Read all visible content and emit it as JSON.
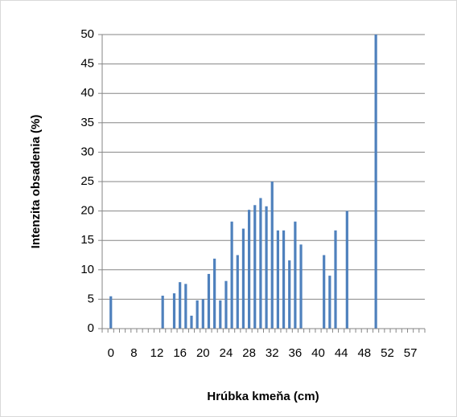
{
  "chart_data": {
    "type": "bar",
    "x_label": "Hrúbka kmeňa (cm)",
    "y_label": "Intenzita obsadenia (%)",
    "categories": [
      null,
      "0",
      null,
      null,
      null,
      "8",
      null,
      null,
      null,
      "12",
      null,
      null,
      null,
      "16",
      null,
      null,
      null,
      "20",
      null,
      null,
      null,
      "24",
      null,
      null,
      null,
      "28",
      null,
      null,
      null,
      "32",
      null,
      null,
      null,
      "36",
      null,
      null,
      null,
      "40",
      null,
      null,
      null,
      "44",
      null,
      null,
      null,
      "48",
      null,
      null,
      null,
      "52",
      null,
      null,
      null,
      "57",
      null,
      null
    ],
    "values": [
      0,
      5.5,
      0,
      0,
      0,
      0,
      0,
      0,
      0,
      0,
      5.6,
      0,
      6,
      7.9,
      7.6,
      2.2,
      4.8,
      5,
      9.3,
      11.9,
      4.8,
      8.1,
      18.2,
      12.5,
      17,
      20.2,
      21,
      22.2,
      20.8,
      25,
      16.7,
      16.7,
      11.6,
      18.2,
      14.3,
      0,
      0,
      0,
      12.5,
      9,
      16.7,
      0,
      20,
      0,
      0,
      0,
      0,
      50,
      0,
      0,
      0,
      0,
      0,
      0,
      0,
      0
    ],
    "color": "#4f81bd",
    "ylim": [
      0,
      50
    ],
    "yticks": [
      0,
      5,
      10,
      15,
      20,
      25,
      30,
      35,
      40,
      45,
      50
    ],
    "grid": true
  }
}
